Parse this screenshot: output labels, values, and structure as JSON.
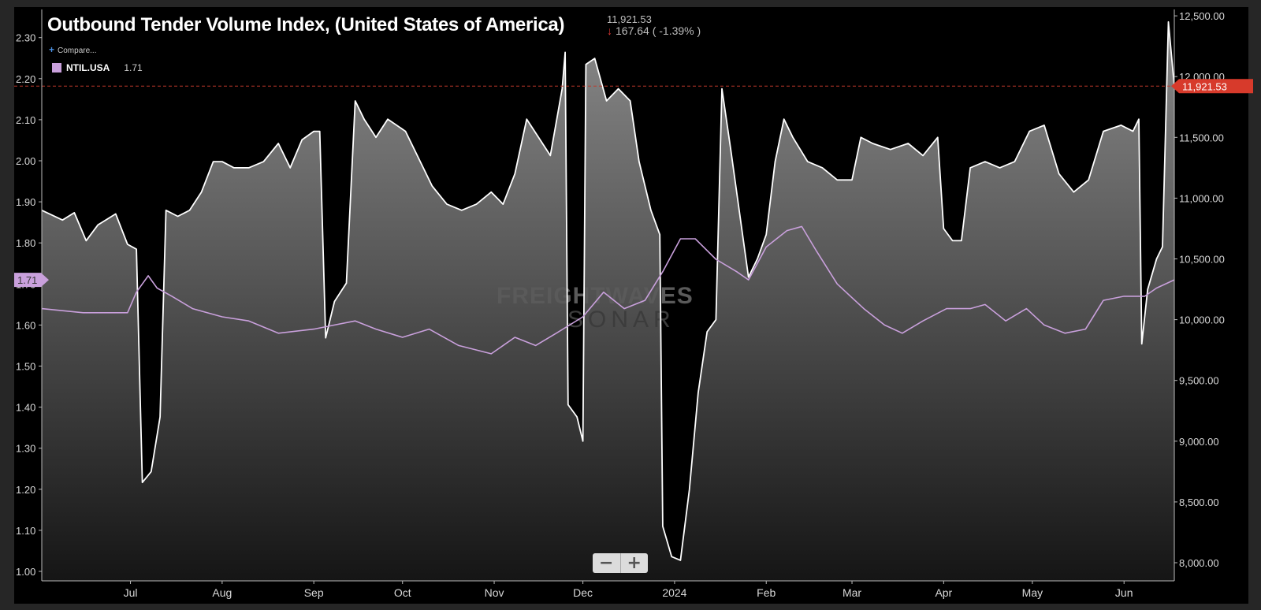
{
  "header": {
    "title": "Outbound Tender Volume Index, (United States of America)",
    "price": "11,921.53",
    "change": "167.64 ( -1.39% )",
    "compare_label": "Compare..."
  },
  "legend": {
    "name": "NTIL.USA",
    "value": "1.71",
    "color": "#c9a0dc"
  },
  "watermark": {
    "line1": "FREIGHTWAVES",
    "line2": "SONAR"
  },
  "current_value_tag": "11,921.53",
  "left_value_tag": "1.71",
  "colors": {
    "otvi_line": "#ffffff",
    "ntil_line": "#c9a0dc",
    "current_tag": "#d73a2b",
    "left_tag": "#c9a0dc"
  },
  "chart_data": {
    "type": "area",
    "title": "Outbound Tender Volume Index, (United States of America)",
    "x_tick_labels": [
      "Jul",
      "Aug",
      "Sep",
      "Oct",
      "Nov",
      "Dec",
      "2024",
      "Feb",
      "Mar",
      "Apr",
      "May",
      "Jun"
    ],
    "left_axis": {
      "ticks": [
        "2.30",
        "2.20",
        "2.10",
        "2.00",
        "1.90",
        "1.80",
        "1.70",
        "1.60",
        "1.50",
        "1.40",
        "1.30",
        "1.20",
        "1.10",
        "1.00"
      ],
      "range": [
        1.0,
        2.3
      ]
    },
    "right_axis": {
      "ticks": [
        "12,500.00",
        "12,000.00",
        "11,500.00",
        "11,000.00",
        "10,500.00",
        "10,000.00",
        "9,500.00",
        "9,000.00",
        "8,500.00",
        "8,000.00"
      ],
      "range": [
        8000,
        12500
      ]
    },
    "reference_line": {
      "value": 11921.53,
      "axis": "right",
      "style": "dashed"
    },
    "series": [
      {
        "name": "Outbound Tender Volume Index",
        "axis": "right",
        "style": "area",
        "color": "#ffffff",
        "points": [
          [
            "2023-06-01",
            10900
          ],
          [
            "2023-06-08",
            10820
          ],
          [
            "2023-06-12",
            10880
          ],
          [
            "2023-06-16",
            10650
          ],
          [
            "2023-06-20",
            10780
          ],
          [
            "2023-06-26",
            10870
          ],
          [
            "2023-06-30",
            10620
          ],
          [
            "2023-07-03",
            10580
          ],
          [
            "2023-07-05",
            8660
          ],
          [
            "2023-07-08",
            8750
          ],
          [
            "2023-07-11",
            9200
          ],
          [
            "2023-07-13",
            10900
          ],
          [
            "2023-07-17",
            10850
          ],
          [
            "2023-07-21",
            10900
          ],
          [
            "2023-07-25",
            11050
          ],
          [
            "2023-07-29",
            11300
          ],
          [
            "2023-08-01",
            11300
          ],
          [
            "2023-08-05",
            11250
          ],
          [
            "2023-08-10",
            11250
          ],
          [
            "2023-08-15",
            11300
          ],
          [
            "2023-08-20",
            11450
          ],
          [
            "2023-08-24",
            11250
          ],
          [
            "2023-08-28",
            11480
          ],
          [
            "2023-09-01",
            11550
          ],
          [
            "2023-09-03",
            11550
          ],
          [
            "2023-09-05",
            9850
          ],
          [
            "2023-09-08",
            10150
          ],
          [
            "2023-09-12",
            10300
          ],
          [
            "2023-09-15",
            11800
          ],
          [
            "2023-09-18",
            11650
          ],
          [
            "2023-09-22",
            11500
          ],
          [
            "2023-09-26",
            11650
          ],
          [
            "2023-10-02",
            11550
          ],
          [
            "2023-10-06",
            11350
          ],
          [
            "2023-10-11",
            11100
          ],
          [
            "2023-10-16",
            10950
          ],
          [
            "2023-10-21",
            10900
          ],
          [
            "2023-10-26",
            10950
          ],
          [
            "2023-10-31",
            11050
          ],
          [
            "2023-11-04",
            10950
          ],
          [
            "2023-11-08",
            11200
          ],
          [
            "2023-11-12",
            11650
          ],
          [
            "2023-11-16",
            11500
          ],
          [
            "2023-11-20",
            11350
          ],
          [
            "2023-11-24",
            11900
          ],
          [
            "2023-11-25",
            12200
          ],
          [
            "2023-11-26",
            9300
          ],
          [
            "2023-11-29",
            9200
          ],
          [
            "2023-12-01",
            9000
          ],
          [
            "2023-12-02",
            12100
          ],
          [
            "2023-12-05",
            12150
          ],
          [
            "2023-12-09",
            11800
          ],
          [
            "2023-12-13",
            11900
          ],
          [
            "2023-12-17",
            11800
          ],
          [
            "2023-12-20",
            11300
          ],
          [
            "2023-12-24",
            10900
          ],
          [
            "2023-12-27",
            10700
          ],
          [
            "2023-12-28",
            8300
          ],
          [
            "2023-12-31",
            8050
          ],
          [
            "2024-01-03",
            8020
          ],
          [
            "2024-01-06",
            8600
          ],
          [
            "2024-01-09",
            9400
          ],
          [
            "2024-01-12",
            9900
          ],
          [
            "2024-01-15",
            10000
          ],
          [
            "2024-01-17",
            11900
          ],
          [
            "2024-01-20",
            11400
          ],
          [
            "2024-01-24",
            10700
          ],
          [
            "2024-01-26",
            10350
          ],
          [
            "2024-01-29",
            10500
          ],
          [
            "2024-02-01",
            10700
          ],
          [
            "2024-02-04",
            11300
          ],
          [
            "2024-02-07",
            11650
          ],
          [
            "2024-02-10",
            11500
          ],
          [
            "2024-02-15",
            11300
          ],
          [
            "2024-02-20",
            11250
          ],
          [
            "2024-02-25",
            11150
          ],
          [
            "2024-03-01",
            11150
          ],
          [
            "2024-03-04",
            11500
          ],
          [
            "2024-03-08",
            11450
          ],
          [
            "2024-03-14",
            11400
          ],
          [
            "2024-03-20",
            11450
          ],
          [
            "2024-03-25",
            11350
          ],
          [
            "2024-03-30",
            11500
          ],
          [
            "2024-04-01",
            10750
          ],
          [
            "2024-04-04",
            10650
          ],
          [
            "2024-04-07",
            10650
          ],
          [
            "2024-04-10",
            11250
          ],
          [
            "2024-04-15",
            11300
          ],
          [
            "2024-04-20",
            11250
          ],
          [
            "2024-04-25",
            11300
          ],
          [
            "2024-04-30",
            11550
          ],
          [
            "2024-05-05",
            11600
          ],
          [
            "2024-05-10",
            11200
          ],
          [
            "2024-05-15",
            11050
          ],
          [
            "2024-05-20",
            11150
          ],
          [
            "2024-05-25",
            11550
          ],
          [
            "2024-05-31",
            11600
          ],
          [
            "2024-06-04",
            11550
          ],
          [
            "2024-06-06",
            11650
          ],
          [
            "2024-06-07",
            9800
          ],
          [
            "2024-06-09",
            10250
          ],
          [
            "2024-06-12",
            10500
          ],
          [
            "2024-06-14",
            10600
          ],
          [
            "2024-06-16",
            12450
          ],
          [
            "2024-06-18",
            11921.53
          ]
        ]
      },
      {
        "name": "NTIL.USA",
        "axis": "left",
        "style": "line",
        "color": "#c9a0dc",
        "points": [
          [
            "2023-06-01",
            1.64
          ],
          [
            "2023-06-15",
            1.63
          ],
          [
            "2023-06-30",
            1.63
          ],
          [
            "2023-07-03",
            1.68
          ],
          [
            "2023-07-07",
            1.72
          ],
          [
            "2023-07-10",
            1.69
          ],
          [
            "2023-07-15",
            1.67
          ],
          [
            "2023-07-22",
            1.64
          ],
          [
            "2023-08-01",
            1.62
          ],
          [
            "2023-08-10",
            1.61
          ],
          [
            "2023-08-20",
            1.58
          ],
          [
            "2023-09-01",
            1.59
          ],
          [
            "2023-09-08",
            1.6
          ],
          [
            "2023-09-15",
            1.61
          ],
          [
            "2023-09-22",
            1.59
          ],
          [
            "2023-10-01",
            1.57
          ],
          [
            "2023-10-10",
            1.59
          ],
          [
            "2023-10-20",
            1.55
          ],
          [
            "2023-10-31",
            1.53
          ],
          [
            "2023-11-08",
            1.57
          ],
          [
            "2023-11-15",
            1.55
          ],
          [
            "2023-11-22",
            1.58
          ],
          [
            "2023-12-01",
            1.62
          ],
          [
            "2023-12-08",
            1.68
          ],
          [
            "2023-12-15",
            1.64
          ],
          [
            "2023-12-22",
            1.66
          ],
          [
            "2023-12-28",
            1.73
          ],
          [
            "2024-01-03",
            1.81
          ],
          [
            "2024-01-08",
            1.81
          ],
          [
            "2024-01-15",
            1.76
          ],
          [
            "2024-01-22",
            1.73
          ],
          [
            "2024-01-26",
            1.71
          ],
          [
            "2024-02-01",
            1.79
          ],
          [
            "2024-02-08",
            1.83
          ],
          [
            "2024-02-13",
            1.84
          ],
          [
            "2024-02-18",
            1.78
          ],
          [
            "2024-02-25",
            1.7
          ],
          [
            "2024-03-05",
            1.64
          ],
          [
            "2024-03-12",
            1.6
          ],
          [
            "2024-03-18",
            1.58
          ],
          [
            "2024-03-25",
            1.61
          ],
          [
            "2024-04-02",
            1.64
          ],
          [
            "2024-04-10",
            1.64
          ],
          [
            "2024-04-15",
            1.65
          ],
          [
            "2024-04-22",
            1.61
          ],
          [
            "2024-04-29",
            1.64
          ],
          [
            "2024-05-05",
            1.6
          ],
          [
            "2024-05-12",
            1.58
          ],
          [
            "2024-05-19",
            1.59
          ],
          [
            "2024-05-25",
            1.66
          ],
          [
            "2024-06-01",
            1.67
          ],
          [
            "2024-06-08",
            1.67
          ],
          [
            "2024-06-12",
            1.69
          ],
          [
            "2024-06-18",
            1.71
          ]
        ]
      }
    ]
  }
}
